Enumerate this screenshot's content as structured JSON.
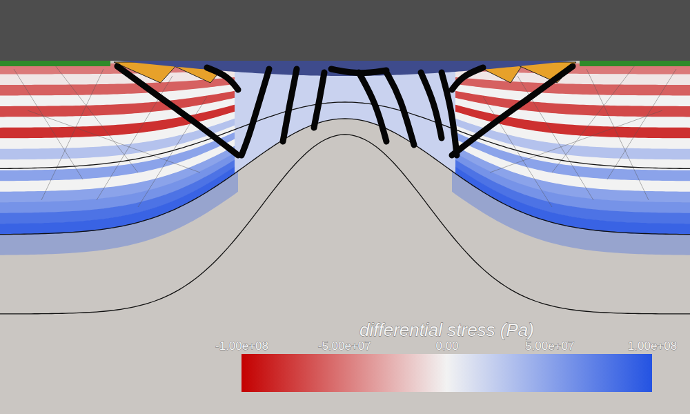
{
  "chart_data": {
    "type": "heatmap",
    "colorbar_title": "differential stress (Pa)",
    "colorbar": {
      "range": [
        -100000000,
        100000000
      ],
      "colors": [
        "#c40000",
        "#f2f2f2",
        "#2453e2"
      ],
      "ticks": [
        {
          "value": -100000000,
          "label": "-1.00e+08"
        },
        {
          "value": -50000000,
          "label": "-5.00e+07"
        },
        {
          "value": 0,
          "label": "0.00"
        },
        {
          "value": 50000000,
          "label": "5.00e+07"
        },
        {
          "value": 100000000,
          "label": "1.00e+08"
        }
      ]
    },
    "stress_layers": [
      -50000000,
      -5000000,
      -60000000,
      0,
      -70000000,
      0,
      -80000000,
      0,
      30000000,
      0,
      50000000,
      0,
      50000000,
      60000000,
      80000000,
      90000000
    ],
    "dome_stress": 20000000
  }
}
